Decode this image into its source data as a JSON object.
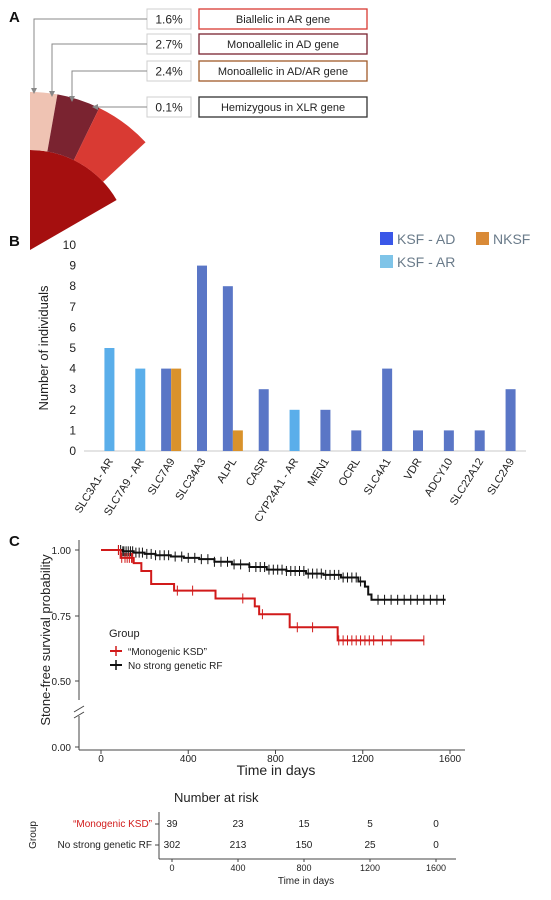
{
  "panels": {
    "a": "A",
    "b": "B",
    "c": "C"
  },
  "chart_data": [
    {
      "type": "pie",
      "panel": "A",
      "slices": [
        {
          "percent": "1.6%",
          "label": "Biallelic in AR gene",
          "color": "#d93a33"
        },
        {
          "percent": "2.7%",
          "label": "Monoallelic in AD gene",
          "color": "#7a2330"
        },
        {
          "percent": "2.4%",
          "label": "Monoallelic in AD/AR gene",
          "color": "#a05a2a"
        },
        {
          "percent": "0.1%",
          "label": "Hemizygous in XLR gene",
          "color": "#333333"
        }
      ],
      "base_color": "#a50f0f",
      "segment_colors": [
        "#efc3b3",
        "#7a2330",
        "#d93a33"
      ]
    },
    {
      "type": "bar",
      "panel": "B",
      "ylabel": "Number of individuals",
      "ylim": [
        0,
        10
      ],
      "yticks": [
        0,
        1,
        2,
        3,
        4,
        5,
        6,
        7,
        8,
        9,
        10
      ],
      "categories": [
        "SLC3A1- AR",
        "SLC7A9 - AR",
        "SLC7A9",
        "SLC34A3",
        "ALPL",
        "CASR",
        "CYP24A1 - AR",
        "MEN1",
        "OCRL",
        "SLC4A1",
        "VDR",
        "ADCY10",
        "SLC22A12",
        "SLC2A9"
      ],
      "bars": [
        {
          "category": "SLC3A1- AR",
          "value": 5,
          "group": "KSF - AR"
        },
        {
          "category": "SLC7A9 - AR",
          "value": 4,
          "group": "KSF - AR"
        },
        {
          "category": "SLC7A9",
          "value": 4,
          "group": "KSF - AD"
        },
        {
          "category": "SLC7A9",
          "value": 4,
          "group": "NKSF"
        },
        {
          "category": "SLC34A3",
          "value": 9,
          "group": "KSF - AD"
        },
        {
          "category": "ALPL",
          "value": 8,
          "group": "KSF - AD"
        },
        {
          "category": "ALPL",
          "value": 1,
          "group": "NKSF"
        },
        {
          "category": "CASR",
          "value": 3,
          "group": "KSF - AD"
        },
        {
          "category": "CYP24A1 - AR",
          "value": 2,
          "group": "KSF - AR"
        },
        {
          "category": "MEN1",
          "value": 2,
          "group": "KSF - AD"
        },
        {
          "category": "OCRL",
          "value": 1,
          "group": "KSF - AD"
        },
        {
          "category": "SLC4A1",
          "value": 4,
          "group": "KSF - AD"
        },
        {
          "category": "VDR",
          "value": 1,
          "group": "KSF - AD"
        },
        {
          "category": "ADCY10",
          "value": 1,
          "group": "KSF - AD"
        },
        {
          "category": "SLC22A12",
          "value": 1,
          "group": "KSF - AD"
        },
        {
          "category": "SLC2A9",
          "value": 3,
          "group": "KSF - AD"
        }
      ],
      "legend": [
        {
          "label": "KSF - AD",
          "swatch": "#3a57e8",
          "bar": "#5a76c6"
        },
        {
          "label": "NKSF",
          "swatch": "#d98a37",
          "bar": "#d9922b"
        },
        {
          "label": "KSF - AR",
          "swatch": "#7fc4e8",
          "bar": "#5aaeea"
        }
      ],
      "legend_position": "top-right",
      "grid": false
    },
    {
      "type": "line",
      "panel": "C",
      "subtype": "kaplan-meier",
      "xlabel": "Time in days",
      "ylabel": "Stone-free survival probability",
      "xticks": [
        0,
        400,
        800,
        1200,
        1600
      ],
      "yticks": [
        "1.00",
        "0.75",
        "0.50",
        "0.00"
      ],
      "xlim": [
        0,
        1600
      ],
      "legend_title": "Group",
      "series": [
        {
          "name": "“Monogenic KSD”",
          "color": "#d11a1a",
          "steps": [
            [
              0,
              1.0
            ],
            [
              90,
              0.97
            ],
            [
              150,
              0.95
            ],
            [
              185,
              0.92
            ],
            [
              230,
              0.87
            ],
            [
              330,
              0.87
            ],
            [
              335,
              0.845
            ],
            [
              520,
              0.845
            ],
            [
              525,
              0.815
            ],
            [
              700,
              0.815
            ],
            [
              705,
              0.785
            ],
            [
              725,
              0.755
            ],
            [
              860,
              0.755
            ],
            [
              865,
              0.705
            ],
            [
              1080,
              0.705
            ],
            [
              1085,
              0.655
            ],
            [
              1480,
              0.655
            ]
          ],
          "censor": [
            80,
            95,
            110,
            120,
            130,
            140,
            145,
            350,
            420,
            650,
            740,
            900,
            970,
            1090,
            1110,
            1130,
            1150,
            1170,
            1190,
            1210,
            1230,
            1250,
            1290,
            1330,
            1480
          ]
        },
        {
          "name": "No strong genetic RF",
          "color": "#111111",
          "steps": [
            [
              0,
              1.0
            ],
            [
              70,
              1.0
            ],
            [
              100,
              0.995
            ],
            [
              150,
              0.99
            ],
            [
              200,
              0.985
            ],
            [
              250,
              0.98
            ],
            [
              320,
              0.975
            ],
            [
              380,
              0.97
            ],
            [
              450,
              0.965
            ],
            [
              520,
              0.955
            ],
            [
              600,
              0.945
            ],
            [
              680,
              0.935
            ],
            [
              760,
              0.925
            ],
            [
              850,
              0.92
            ],
            [
              940,
              0.91
            ],
            [
              1020,
              0.905
            ],
            [
              1100,
              0.895
            ],
            [
              1180,
              0.88
            ],
            [
              1210,
              0.86
            ],
            [
              1225,
              0.83
            ],
            [
              1240,
              0.81
            ],
            [
              1580,
              0.81
            ]
          ],
          "censor": [
            80,
            90,
            100,
            105,
            115,
            125,
            135,
            145,
            160,
            175,
            190,
            210,
            230,
            250,
            270,
            290,
            310,
            340,
            370,
            400,
            430,
            460,
            490,
            520,
            550,
            580,
            610,
            640,
            680,
            710,
            730,
            750,
            770,
            790,
            810,
            830,
            850,
            870,
            890,
            910,
            930,
            950,
            970,
            990,
            1010,
            1030,
            1050,
            1070,
            1090,
            1110,
            1130,
            1150,
            1170,
            1190,
            1270,
            1300,
            1330,
            1360,
            1390,
            1420,
            1450,
            1480,
            1510,
            1540,
            1570
          ]
        }
      ]
    },
    {
      "type": "table",
      "panel": "C",
      "title": "Number at risk",
      "row_axis_label": "Group",
      "xlabel": "Time in days",
      "xticks": [
        0,
        400,
        800,
        1200,
        1600
      ],
      "rows": [
        {
          "label": "“Monogenic KSD”",
          "color": "#d11a1a",
          "values": [
            39,
            23,
            15,
            5,
            0
          ]
        },
        {
          "label": "No strong genetic RF",
          "color": "#222222",
          "values": [
            302,
            213,
            150,
            25,
            0
          ]
        }
      ]
    }
  ]
}
